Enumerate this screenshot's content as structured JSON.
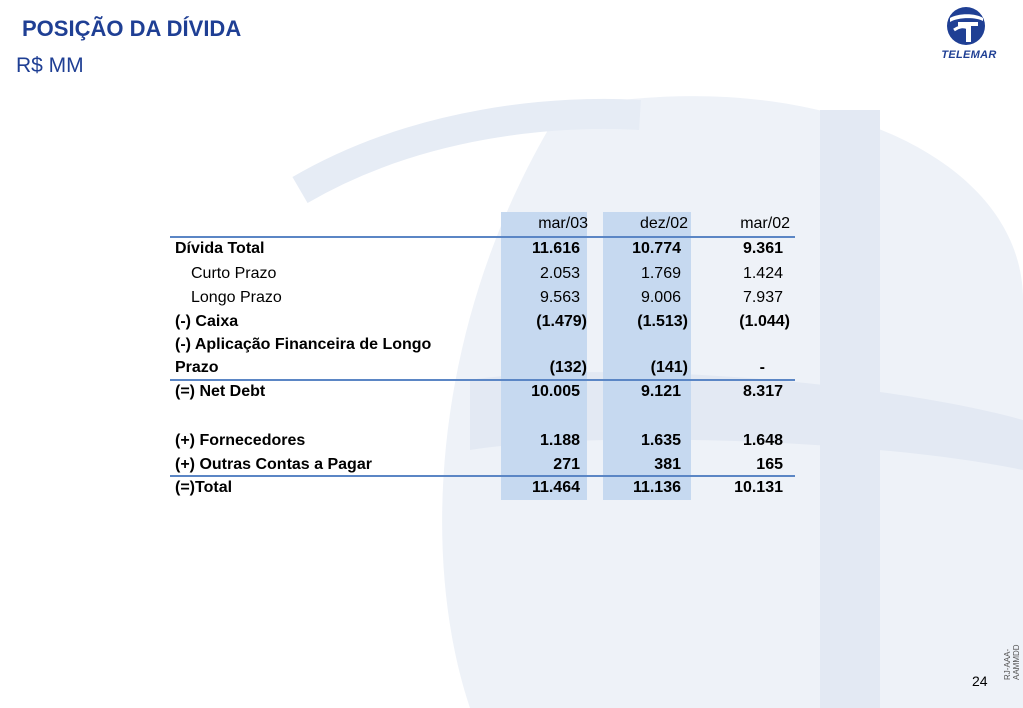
{
  "slide": {
    "title": "POSIÇÃO DA DÍVIDA",
    "subtitle": "R$ MM",
    "page_number": "24",
    "footer_code": "RJ-AAA-AAMMDD"
  },
  "logo": {
    "text": "TELEMAR",
    "color": "#1f3f94"
  },
  "colors": {
    "title": "#1f3f94",
    "column_shade": "#c6d9f0",
    "rule": "#5b86c5"
  },
  "table": {
    "columns": [
      "mar/03",
      "dez/02",
      "mar/02"
    ],
    "rows": [
      {
        "label": "Dívida Total",
        "values": [
          "11.616",
          "10.774",
          "9.361"
        ]
      },
      {
        "label": "Curto Prazo",
        "values": [
          "2.053",
          "1.769",
          "1.424"
        ]
      },
      {
        "label": "Longo Prazo",
        "values": [
          "9.563",
          "9.006",
          "7.937"
        ]
      },
      {
        "label": "(-) Caixa",
        "values": [
          "(1.479)",
          "(1.513)",
          "(1.044)"
        ]
      },
      {
        "label": "(-) Aplicação Financeira de Longo",
        "label2": "Prazo",
        "values": [
          "(132)",
          "(141)",
          "-"
        ]
      },
      {
        "label": "(=) Net Debt",
        "values": [
          "10.005",
          "9.121",
          "8.317"
        ]
      },
      {
        "label": "(+) Fornecedores",
        "values": [
          "1.188",
          "1.635",
          "1.648"
        ]
      },
      {
        "label": "(+) Outras Contas a Pagar",
        "values": [
          "271",
          "381",
          "165"
        ]
      },
      {
        "label": "(=)Total",
        "values": [
          "11.464",
          "11.136",
          "10.131"
        ]
      }
    ]
  }
}
